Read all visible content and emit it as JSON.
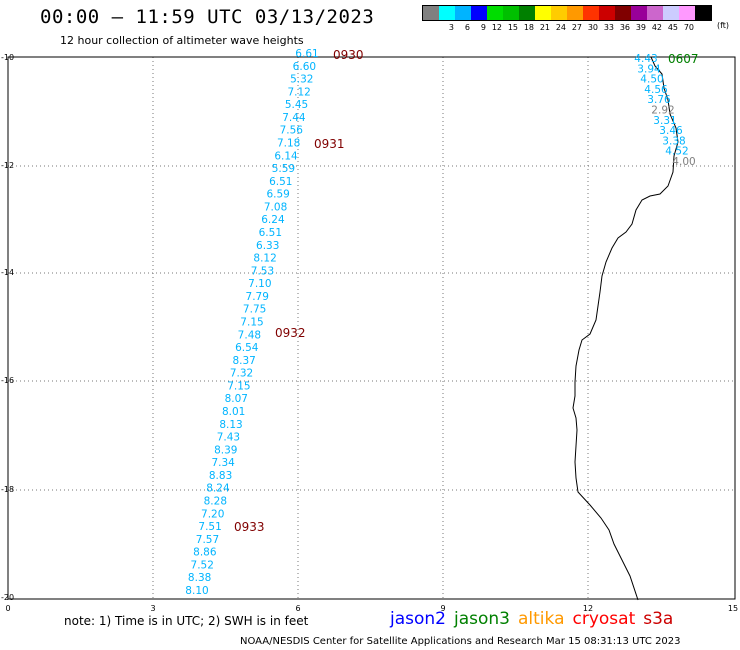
{
  "title": "00:00 — 11:59 UTC 03/13/2023",
  "subtitle": "12 hour collection of altimeter wave heights",
  "legend": {
    "colors": [
      "#808080",
      "#00ffff",
      "#00b4ff",
      "#0000ff",
      "#00dd00",
      "#00c000",
      "#008000",
      "#ffff00",
      "#ffcc00",
      "#ff9900",
      "#ff3300",
      "#cc0000",
      "#800000",
      "#990099",
      "#cc66cc",
      "#ccccff",
      "#ff99ff",
      "#000000"
    ],
    "labels": [
      "",
      "3",
      "6",
      "9",
      "12",
      "15",
      "18",
      "21",
      "24",
      "27",
      "30",
      "33",
      "36",
      "39",
      "42",
      "45",
      "70"
    ],
    "unit": "(ft)"
  },
  "y_ticks": [
    "-10",
    "-12",
    "-14",
    "-16",
    "-18",
    "-20"
  ],
  "x_ticks": [
    "0",
    "3",
    "6",
    "9",
    "12",
    "15"
  ],
  "track_west": {
    "color": "#00b4ff",
    "values": [
      "6.61",
      "6.60",
      "5.32",
      "7.12",
      "5.45",
      "7.44",
      "7.56",
      "7.18",
      "6.14",
      "5.59",
      "6.51",
      "6.59",
      "7.08",
      "6.24",
      "6.51",
      "6.33",
      "8.12",
      "7.53",
      "7.10",
      "7.79",
      "7.75",
      "7.15",
      "7.48",
      "6.54",
      "8.37",
      "7.32",
      "7.15",
      "8.07",
      "8.01",
      "8.13",
      "7.43",
      "8.39",
      "7.34",
      "8.83",
      "8.24",
      "8.28",
      "7.20",
      "7.51",
      "7.57",
      "8.86",
      "7.52",
      "8.38",
      "8.10"
    ],
    "times": [
      "0930",
      "0931",
      "0932",
      "0933"
    ]
  },
  "track_east": {
    "values": [
      "4.43",
      "3.94",
      "4.50",
      "4.56",
      "3.76",
      "2.92",
      "3.31",
      "3.46",
      "3.38",
      "4.52",
      "4.00"
    ],
    "colors": [
      "#00b4ff",
      "#00b4ff",
      "#00b4ff",
      "#00b4ff",
      "#00b4ff",
      "#808080",
      "#00b4ff",
      "#00b4ff",
      "#00b4ff",
      "#00b4ff",
      "#808080"
    ],
    "time": "0607"
  },
  "time_color": "#800000",
  "east_time_color": "#008000",
  "note": "note: 1) Time is in UTC; 2) SWH is in feet",
  "satellites": [
    {
      "name": "jason2",
      "color": "#0000ff"
    },
    {
      "name": "jason3",
      "color": "#008000"
    },
    {
      "name": "altika",
      "color": "#ff9900"
    },
    {
      "name": "cryosat",
      "color": "#ff0000"
    },
    {
      "name": "s3a",
      "color": "#cc0000"
    }
  ],
  "footer": "NOAA/NESDIS Center for Satellite Applications and Research    Mar 15 08:31:13 UTC 2023"
}
